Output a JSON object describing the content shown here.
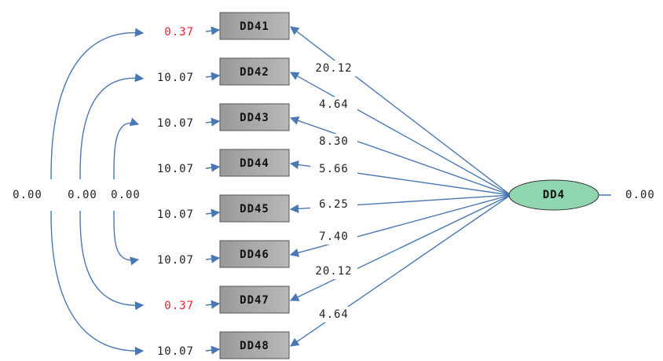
{
  "latent": {
    "label": "DD4",
    "variance": "0.00"
  },
  "indicators": [
    {
      "label": "DD41",
      "loading": "20.12",
      "error": "0.37",
      "error_color": "#e8202a"
    },
    {
      "label": "DD42",
      "loading": "4.64",
      "error": "10.07",
      "error_color": "#222222"
    },
    {
      "label": "DD43",
      "loading": "8.30",
      "error": "10.07",
      "error_color": "#222222"
    },
    {
      "label": "DD44",
      "loading": "5.66",
      "error": "10.07",
      "error_color": "#222222"
    },
    {
      "label": "DD45",
      "loading": "6.25",
      "error": "10.07",
      "error_color": "#222222"
    },
    {
      "label": "DD46",
      "loading": "7.40",
      "error": "10.07",
      "error_color": "#222222"
    },
    {
      "label": "DD47",
      "loading": "20.12",
      "error": "0.37",
      "error_color": "#e8202a"
    },
    {
      "label": "DD48",
      "loading": "4.64",
      "error": "10.07",
      "error_color": "#222222"
    }
  ],
  "covariances": [
    "0.00",
    "0.00",
    "0.00"
  ]
}
